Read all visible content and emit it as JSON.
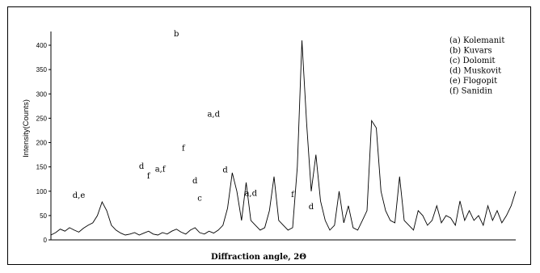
{
  "chart_data": {
    "type": "line",
    "title": "",
    "xlabel": "Diffraction angle, 2Θ",
    "ylabel": "Intensity(Counts)",
    "ylim": [
      0,
      400
    ],
    "y_ticks": [
      0,
      50,
      100,
      150,
      200,
      250,
      300,
      350,
      400
    ],
    "grid": false,
    "legend_position": "top-right",
    "legend": [
      "(a) Kolemanit",
      "(b) Kuvars",
      "(c) Dolomit",
      "(d) Muskovit",
      "(e) Flogopit",
      "(f) Sanidin"
    ],
    "series": [
      {
        "color": "#000000",
        "x": [
          0,
          2,
          4,
          6,
          8,
          10,
          12,
          14,
          16,
          18,
          20,
          22,
          24,
          26,
          28,
          30,
          32,
          34,
          36,
          38,
          40,
          42,
          44,
          46,
          48,
          50,
          52,
          54,
          56,
          58,
          60,
          62,
          64,
          66,
          68,
          70,
          72,
          74,
          76,
          78,
          80,
          82,
          84,
          86,
          88,
          90,
          92,
          94,
          96,
          98,
          100,
          102,
          104,
          106,
          108,
          110,
          112,
          114,
          116,
          118,
          120,
          122,
          124,
          126,
          128,
          130,
          132,
          134,
          136,
          138,
          140,
          142,
          144,
          146,
          148,
          150,
          152,
          154,
          156,
          158,
          160,
          162,
          164,
          166,
          168,
          170,
          172,
          174,
          176,
          178,
          180,
          182,
          184,
          186,
          188,
          190,
          192,
          194,
          196,
          198,
          200
        ],
        "y": [
          10,
          15,
          22,
          18,
          25,
          20,
          16,
          24,
          30,
          35,
          50,
          78,
          60,
          30,
          20,
          14,
          10,
          12,
          15,
          10,
          14,
          18,
          12,
          10,
          15,
          12,
          18,
          22,
          16,
          12,
          20,
          25,
          15,
          12,
          18,
          14,
          20,
          30,
          65,
          138,
          100,
          40,
          118,
          40,
          30,
          20,
          25,
          60,
          130,
          40,
          30,
          20,
          25,
          150,
          410,
          240,
          100,
          175,
          80,
          40,
          20,
          30,
          100,
          35,
          70,
          25,
          20,
          40,
          60,
          245,
          230,
          100,
          60,
          40,
          35,
          130,
          40,
          30,
          20,
          60,
          50,
          30,
          40,
          70,
          35,
          50,
          45,
          30,
          80,
          40,
          60,
          40,
          50,
          30,
          70,
          40,
          60,
          35,
          50,
          70,
          100
        ]
      }
    ],
    "annotations": [
      {
        "text": "d,e",
        "x": 12,
        "y": 78
      },
      {
        "text": "d",
        "x": 39,
        "y": 138
      },
      {
        "text": "f",
        "x": 42,
        "y": 118
      },
      {
        "text": "a,f",
        "x": 47,
        "y": 132
      },
      {
        "text": "b",
        "x": 54,
        "y": 410
      },
      {
        "text": "f",
        "x": 57,
        "y": 175
      },
      {
        "text": "d",
        "x": 62,
        "y": 108
      },
      {
        "text": "c",
        "x": 64,
        "y": 72
      },
      {
        "text": "a,d",
        "x": 70,
        "y": 245
      },
      {
        "text": "d",
        "x": 75,
        "y": 130
      },
      {
        "text": "a,d",
        "x": 86,
        "y": 82
      },
      {
        "text": "f",
        "x": 104,
        "y": 80
      },
      {
        "text": "d",
        "x": 112,
        "y": 55
      }
    ]
  }
}
